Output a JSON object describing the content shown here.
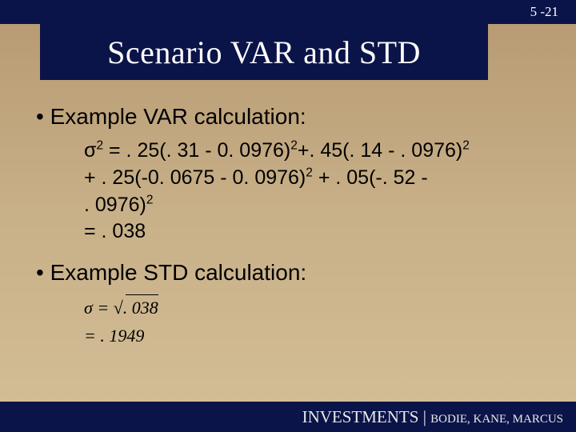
{
  "page_number": "5 -21",
  "title": "Scenario VAR and STD",
  "bullets": {
    "var_heading": "Example VAR calculation:",
    "std_heading": "Example STD calculation:"
  },
  "var_calc": {
    "line1_a": "σ",
    "line1_b": " = . 25(. 31 - 0. 0976)",
    "line1_c": "+. 45(. 14 - . 0976)",
    "line2_a": "+ . 25(-0. 0675 - 0. 0976)",
    "line2_b": " + . 05(-. 52 -",
    "line3_a": ". 0976)",
    "line4": " = . 038"
  },
  "std_calc": {
    "sigma": "σ",
    "eq1_lhs": " = ",
    "eq1_rad": ". 038",
    "eq2": "= . 1949"
  },
  "footer": {
    "main": "INVESTMENTS ",
    "sep": "| ",
    "authors": "BODIE, KANE, MARCUS"
  },
  "colors": {
    "banner_bg": "#0b1448",
    "bg_top": "#b69971",
    "bg_bottom": "#d4bf98",
    "title_text": "#ffffff",
    "body_text": "#000000"
  }
}
